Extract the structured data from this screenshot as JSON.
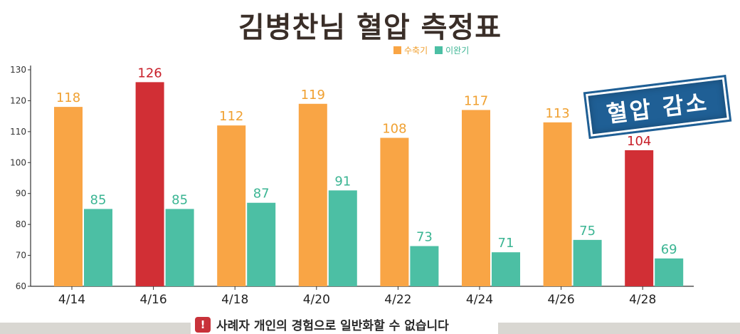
{
  "title": "김병찬님 혈압 측정표",
  "stamp_text": "혈압 감소",
  "notice_text": "사례자 개인의 경험으로 일반화할 수 없습니다",
  "notice_icon": "warning-icon",
  "colors": {
    "systolic": "#f9a545",
    "diastolic": "#4cbfa4",
    "highlight": "#d12f35",
    "label_systolic": "#f0a030",
    "label_diastolic": "#3bb593",
    "label_highlight": "#c8202a"
  },
  "chart_data": {
    "type": "bar",
    "title": "김병찬님 혈압 측정표",
    "categories": [
      "4/14",
      "4/16",
      "4/18",
      "4/20",
      "4/22",
      "4/24",
      "4/26",
      "4/28"
    ],
    "series": [
      {
        "name": "수축기",
        "values": [
          118,
          126,
          112,
          119,
          108,
          117,
          113,
          104
        ]
      },
      {
        "name": "이완기",
        "values": [
          85,
          85,
          87,
          91,
          73,
          71,
          75,
          69
        ]
      }
    ],
    "highlighted_points": [
      {
        "series": "수축기",
        "category": "4/16"
      },
      {
        "series": "수축기",
        "category": "4/28"
      }
    ],
    "yticks": [
      60,
      70,
      80,
      90,
      100,
      110,
      120,
      130
    ],
    "ylim": [
      60,
      130
    ],
    "xlabel": "",
    "ylabel": "",
    "grid": false,
    "legend_position": "top-right"
  }
}
